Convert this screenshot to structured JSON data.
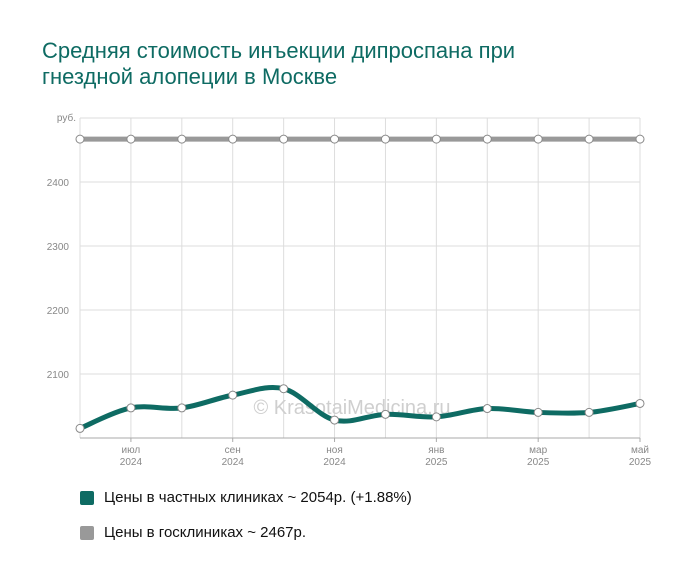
{
  "title": {
    "line1": "Средняя стоимость инъекции дипроспана при",
    "line2": "гнездной алопеции в Москве"
  },
  "watermark": "© KrasotaiMedicina.ru",
  "chart_data": {
    "type": "line",
    "y_unit": "руб.",
    "ylim": [
      2000,
      2500
    ],
    "y_ticks": [
      2100,
      2200,
      2300,
      2400
    ],
    "grid": true,
    "x": [
      "2024-06",
      "2024-07",
      "2024-08",
      "2024-09",
      "2024-10",
      "2024-11",
      "2024-12",
      "2025-01",
      "2025-02",
      "2025-03",
      "2025-04",
      "2025-05"
    ],
    "x_tick_labels": [
      {
        "month": "июл",
        "year": "2024"
      },
      {
        "month": "сен",
        "year": "2024"
      },
      {
        "month": "ноя",
        "year": "2024"
      },
      {
        "month": "янв",
        "year": "2025"
      },
      {
        "month": "мар",
        "year": "2025"
      },
      {
        "month": "май",
        "year": "2025"
      }
    ],
    "series": [
      {
        "name": "Цены в частных клиниках ~ 2054р. (+1.88%)",
        "color": "#0e6b63",
        "values": [
          2015,
          2047,
          2047,
          2067,
          2077,
          2028,
          2037,
          2033,
          2046,
          2040,
          2040,
          2054
        ]
      },
      {
        "name": "Цены в госклиниках ~ 2467р.",
        "color": "#999999",
        "values": [
          2467,
          2467,
          2467,
          2467,
          2467,
          2467,
          2467,
          2467,
          2467,
          2467,
          2467,
          2467
        ]
      }
    ],
    "legend": "bottom"
  }
}
